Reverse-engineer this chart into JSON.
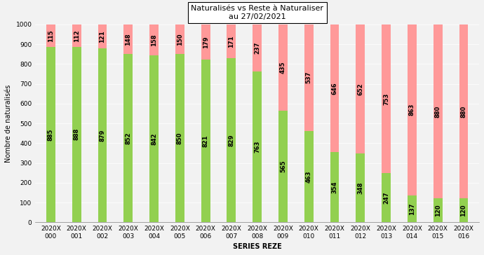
{
  "categories": [
    "2020X\n000",
    "2020X\n001",
    "2020X\n002",
    "2020X\n003",
    "2020X\n004",
    "2020X\n005",
    "2020X\n006",
    "2020X\n007",
    "2020X\n008",
    "2020X\n009",
    "2020X\n010",
    "2020X\n011",
    "2020X\n012",
    "2020X\n013",
    "2020X\n014",
    "2020X\n015",
    "2020X\n016"
  ],
  "green_values": [
    885,
    888,
    879,
    852,
    842,
    850,
    821,
    829,
    763,
    565,
    463,
    354,
    348,
    247,
    137,
    120,
    120
  ],
  "red_values": [
    115,
    112,
    121,
    148,
    158,
    150,
    179,
    171,
    237,
    435,
    537,
    646,
    652,
    753,
    863,
    880,
    880
  ],
  "green_color": "#92D050",
  "red_color": "#FF9999",
  "title": "Naturalisés vs Reste à Naturaliser\nau 27/02/2021",
  "xlabel": "SERIES REZE",
  "ylabel": "Nombre de naturalisés",
  "ylim": [
    0,
    1000
  ],
  "yticks": [
    0,
    100,
    200,
    300,
    400,
    500,
    600,
    700,
    800,
    900,
    1000
  ],
  "bar_width": 0.35,
  "title_fontsize": 8,
  "tick_fontsize": 6.5,
  "xlabel_fontsize": 7,
  "ylabel_fontsize": 7,
  "value_fontsize": 6,
  "figsize": [
    6.9,
    3.64
  ],
  "dpi": 100,
  "bg_color": "#F2F2F2"
}
